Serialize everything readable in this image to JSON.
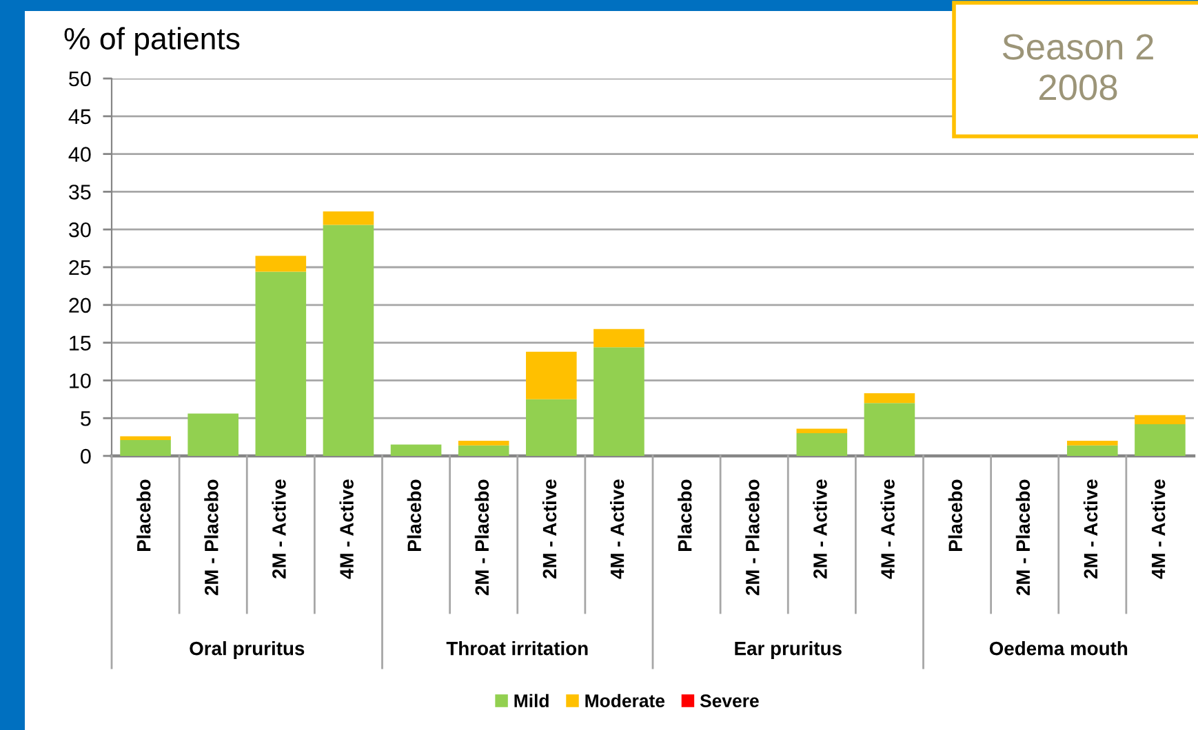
{
  "chart_data": {
    "type": "bar",
    "stacked": true,
    "title": "Season 2\n2008",
    "ylabel": "% of patients",
    "categories": [
      "Placebo",
      "2M - Placebo",
      "2M - Active",
      "4M - Active",
      "Placebo",
      "2M - Placebo",
      "2M - Active",
      "4M - Active",
      "Placebo",
      "2M - Placebo",
      "2M - Active",
      "4M - Active",
      "Placebo",
      "2M - Placebo",
      "2M - Active",
      "4M - Active"
    ],
    "series": [
      {
        "name": "Mild",
        "color": "#92d050",
        "values": [
          2.1,
          5.6,
          24.4,
          30.6,
          1.5,
          1.4,
          7.5,
          14.4,
          0,
          0,
          3.0,
          7.0,
          0,
          0,
          1.4,
          4.2
        ]
      },
      {
        "name": "Moderate",
        "color": "#ffc000",
        "values": [
          0.5,
          0,
          2.1,
          1.8,
          0,
          0.6,
          6.3,
          2.4,
          0,
          0,
          0.6,
          1.3,
          0,
          0,
          0.6,
          1.2
        ]
      },
      {
        "name": "Severe",
        "color": "#ff0000",
        "values": [
          0,
          0,
          0,
          0,
          0,
          0,
          0,
          0,
          0,
          0,
          0,
          0,
          0,
          0,
          0,
          0
        ]
      }
    ],
    "ylim": [
      0,
      50
    ],
    "yticks": [
      0,
      5,
      10,
      15,
      20,
      25,
      30,
      35,
      40,
      45,
      50
    ],
    "grid": "y",
    "legend": "bottom",
    "annotations": [
      "Oral pruritus",
      "Throat irritation",
      "Ear pruritus",
      "Oedema mouth"
    ]
  }
}
